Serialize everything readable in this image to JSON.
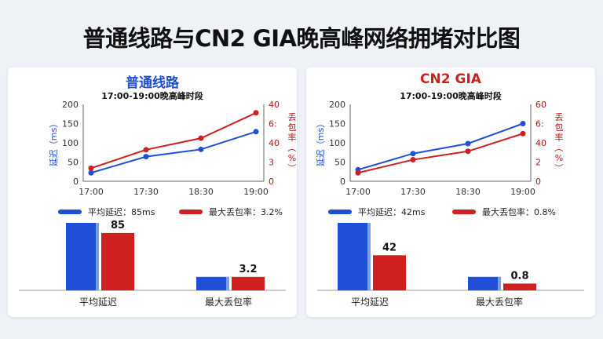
{
  "title": "普通线路与CN2 GIA晚高峰网络拥堵对比图",
  "colors": {
    "blue": "#1f4fd6",
    "red": "#d01f1f",
    "line_blue": "#1f4fd6",
    "line_red": "#cc1f1f"
  },
  "panels": [
    {
      "title": "普通线路",
      "title_color": "#1f4fd6",
      "subtitle": "17:00-19:00晚高峰时段",
      "legend": {
        "latency": "平均延迟：85ms",
        "loss": "最大丢包率：3.2%"
      },
      "bar_labels": {
        "latency": "85",
        "loss": "3.2"
      }
    },
    {
      "title": "CN2 GIA",
      "title_color": "#d01f1f",
      "subtitle": "17:00-19:00晚高峰时段",
      "legend": {
        "latency": "平均延迟：42ms",
        "loss": "最大丢包率：0.8%"
      },
      "bar_labels": {
        "latency": "42",
        "loss": "0.8"
      }
    }
  ],
  "chart_data": [
    {
      "type": "line",
      "title": "普通线路",
      "subtitle": "17:00-19:00晚高峰时段",
      "x": [
        "17:00",
        "17:30",
        "18:30",
        "19:00"
      ],
      "y_left": {
        "label": "延迟（ms）",
        "ticks": [
          "0",
          "50",
          "100",
          "150",
          "200"
        ],
        "ylim": [
          0,
          200
        ]
      },
      "y_right": {
        "label": "丢包率（%）",
        "ticks": [
          "0",
          "3",
          "40",
          "6:",
          "40"
        ],
        "ylim": [
          0,
          40
        ]
      },
      "series": [
        {
          "axis": "left",
          "color": "#1f4fd6",
          "values": [
            22,
            64,
            83,
            129
          ]
        },
        {
          "axis": "left",
          "color": "#cc1f1f",
          "values": [
            34,
            82,
            112,
            178
          ]
        }
      ]
    },
    {
      "type": "bar",
      "categories": [
        "平均延迟",
        "最大丢包率"
      ],
      "series": [
        {
          "color": "#1f4fd6",
          "values": [
            100,
            20
          ]
        },
        {
          "color": "#d01f1f",
          "values": [
            85,
            20
          ]
        }
      ],
      "data_labels": [
        "85",
        "3.2"
      ]
    },
    {
      "type": "line",
      "title": "CN2 GIA",
      "subtitle": "17:00-19:00晚高峰时段",
      "x": [
        "17:00",
        "17:30",
        "18:30",
        "19:00"
      ],
      "y_left": {
        "label": "延迟（ms）",
        "ticks": [
          "0",
          "50",
          "100",
          "150",
          "200"
        ],
        "ylim": [
          0,
          200
        ]
      },
      "y_right": {
        "label": "丢包率（%）",
        "ticks": [
          "0",
          "2",
          "40",
          "6:",
          "60"
        ],
        "ylim": [
          0,
          60
        ]
      },
      "series": [
        {
          "axis": "left",
          "color": "#1f4fd6",
          "values": [
            30,
            72,
            98,
            150
          ]
        },
        {
          "axis": "left",
          "color": "#cc1f1f",
          "values": [
            22,
            56,
            78,
            124
          ]
        }
      ]
    },
    {
      "type": "bar",
      "categories": [
        "平均延迟",
        "最大丢包率"
      ],
      "series": [
        {
          "color": "#1f4fd6",
          "values": [
            100,
            20
          ]
        },
        {
          "color": "#d01f1f",
          "values": [
            52,
            10
          ]
        }
      ],
      "data_labels": [
        "42",
        "0.8"
      ]
    }
  ]
}
